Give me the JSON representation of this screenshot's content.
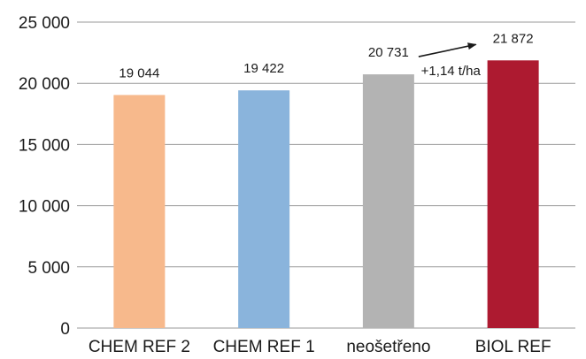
{
  "chart_data": {
    "type": "bar",
    "categories": [
      "CHEM REF 2",
      "CHEM REF 1",
      "neošetřeno",
      "BIOL REF"
    ],
    "values": [
      19044,
      19422,
      20731,
      21872
    ],
    "value_labels": [
      "19 044",
      "19 422",
      "20 731",
      "21 872"
    ],
    "bar_colors": [
      "#f7b98c",
      "#8ab4dc",
      "#b3b3b3",
      "#ad1a30"
    ],
    "ylim": [
      0,
      25000
    ],
    "yticks": [
      0,
      5000,
      10000,
      15000,
      20000,
      25000
    ],
    "ytick_labels": [
      "0",
      "5 000",
      "10 000",
      "15 000",
      "20 000",
      "25 000"
    ],
    "gridlines": true,
    "gridline_color": "#9a9a9a",
    "annotation": {
      "text": "+1,14 t/ha",
      "from_category": "neošetřeno",
      "to_category": "BIOL REF"
    }
  }
}
